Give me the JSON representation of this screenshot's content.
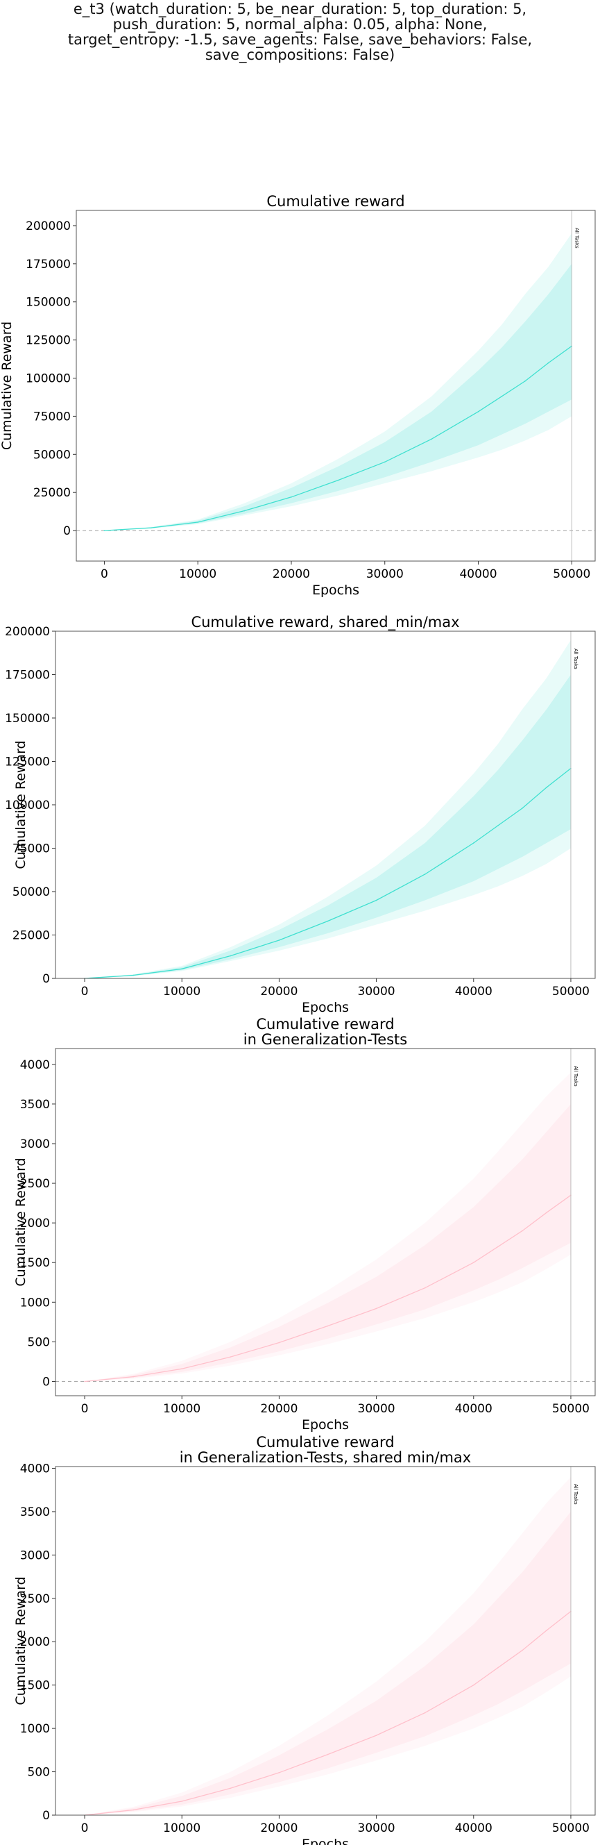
{
  "suptitle_lines": [
    "e_t3 (watch_duration: 5, be_near_duration: 5, top_duration: 5,",
    "push_duration: 5, normal_alpha: 0.05, alpha: None,",
    "target_entropy: -1.5, save_agents: False, save_behaviors: False,",
    "save_compositions: False)"
  ],
  "chart_data": [
    {
      "type": "line",
      "title": [
        "Cumulative reward"
      ],
      "xlabel": "Epochs",
      "ylabel": "Cumulative Reward",
      "xlim": [
        -3000,
        52500
      ],
      "ylim": [
        -20000,
        210000
      ],
      "xticks": [
        0,
        10000,
        20000,
        30000,
        40000,
        50000
      ],
      "yticks": [
        0,
        25000,
        50000,
        75000,
        100000,
        125000,
        150000,
        175000,
        200000
      ],
      "zero_line": true,
      "vline": {
        "x": 50000,
        "label": "All Tasks"
      },
      "colors": {
        "line": "#40e0d0",
        "band": "#40e0d0"
      },
      "series": [
        {
          "x": [
            0,
            5000,
            10000,
            15000,
            20000,
            25000,
            30000,
            35000,
            40000,
            42500,
            45000,
            47500,
            50000
          ],
          "values": [
            0,
            1800,
            5500,
            13000,
            22000,
            33000,
            45000,
            60000,
            78000,
            88000,
            98000,
            110000,
            121000
          ],
          "inner_low": [
            0,
            1500,
            4700,
            11000,
            18000,
            26000,
            35000,
            45000,
            56000,
            63000,
            70000,
            78000,
            86000
          ],
          "inner_high": [
            0,
            2100,
            6500,
            16000,
            28000,
            42000,
            58000,
            78000,
            105000,
            120000,
            137000,
            155000,
            175000
          ],
          "outer_low": [
            0,
            1300,
            4200,
            10000,
            16000,
            23000,
            31000,
            39000,
            48000,
            53000,
            59000,
            66000,
            75000
          ],
          "outer_high": [
            0,
            2400,
            7200,
            18000,
            31000,
            47000,
            65000,
            88000,
            118000,
            135000,
            155000,
            173000,
            195000
          ]
        }
      ]
    },
    {
      "type": "line",
      "title": [
        "Cumulative reward, shared_min/max"
      ],
      "xlabel": "Epochs",
      "ylabel": "Cumulative Reward",
      "xlim": [
        -3000,
        52500
      ],
      "ylim": [
        0,
        200000
      ],
      "xticks": [
        0,
        10000,
        20000,
        30000,
        40000,
        50000
      ],
      "yticks": [
        0,
        25000,
        50000,
        75000,
        100000,
        125000,
        150000,
        175000,
        200000
      ],
      "zero_line": false,
      "vline": {
        "x": 50000,
        "label": "All Tasks"
      },
      "colors": {
        "line": "#40e0d0",
        "band": "#40e0d0"
      },
      "series": [
        {
          "x": [
            0,
            5000,
            10000,
            15000,
            20000,
            25000,
            30000,
            35000,
            40000,
            42500,
            45000,
            47500,
            50000
          ],
          "values": [
            0,
            1800,
            5500,
            13000,
            22000,
            33000,
            45000,
            60000,
            78000,
            88000,
            98000,
            110000,
            121000
          ],
          "inner_low": [
            0,
            1500,
            4700,
            11000,
            18000,
            26000,
            35000,
            45000,
            56000,
            63000,
            70000,
            78000,
            86000
          ],
          "inner_high": [
            0,
            2100,
            6500,
            16000,
            28000,
            42000,
            58000,
            78000,
            105000,
            120000,
            137000,
            155000,
            175000
          ],
          "outer_low": [
            0,
            1300,
            4200,
            10000,
            16000,
            23000,
            31000,
            39000,
            48000,
            53000,
            59000,
            66000,
            75000
          ],
          "outer_high": [
            0,
            2400,
            7200,
            18000,
            31000,
            47000,
            65000,
            88000,
            118000,
            135000,
            155000,
            173000,
            195000
          ]
        }
      ]
    },
    {
      "type": "line",
      "title": [
        "Cumulative reward",
        "in Generalization-Tests"
      ],
      "xlabel": "Epochs",
      "ylabel": "Cumulative Reward",
      "xlim": [
        -3000,
        52500
      ],
      "ylim": [
        -180,
        4200
      ],
      "xticks": [
        0,
        10000,
        20000,
        30000,
        40000,
        50000
      ],
      "yticks": [
        0,
        500,
        1000,
        1500,
        2000,
        2500,
        3000,
        3500,
        4000
      ],
      "zero_line": true,
      "vline": {
        "x": 50000,
        "label": "All Tasks"
      },
      "colors": {
        "line": "#ffc0cb",
        "band": "#ffc0cb"
      },
      "series": [
        {
          "x": [
            0,
            5000,
            10000,
            15000,
            20000,
            25000,
            30000,
            35000,
            40000,
            42500,
            45000,
            47500,
            50000
          ],
          "values": [
            0,
            60,
            160,
            310,
            490,
            700,
            920,
            1180,
            1500,
            1700,
            1900,
            2130,
            2350
          ],
          "inner_low": [
            0,
            45,
            120,
            240,
            380,
            540,
            720,
            910,
            1150,
            1280,
            1430,
            1590,
            1750
          ],
          "inner_high": [
            0,
            80,
            220,
            430,
            690,
            990,
            1320,
            1720,
            2200,
            2500,
            2800,
            3150,
            3500
          ],
          "outer_low": [
            0,
            35,
            100,
            200,
            330,
            470,
            630,
            800,
            1000,
            1120,
            1250,
            1420,
            1600
          ],
          "outer_high": [
            0,
            95,
            260,
            500,
            800,
            1150,
            1540,
            2000,
            2560,
            2900,
            3250,
            3600,
            3900
          ]
        }
      ]
    },
    {
      "type": "line",
      "title": [
        "Cumulative reward",
        "in Generalization-Tests, shared min/max"
      ],
      "xlabel": "Epochs",
      "ylabel": "Cumulative Reward",
      "xlim": [
        -3000,
        52500
      ],
      "ylim": [
        0,
        4020
      ],
      "xticks": [
        0,
        10000,
        20000,
        30000,
        40000,
        50000
      ],
      "yticks": [
        0,
        500,
        1000,
        1500,
        2000,
        2500,
        3000,
        3500,
        4000
      ],
      "zero_line": false,
      "vline": {
        "x": 50000,
        "label": "All Tasks"
      },
      "colors": {
        "line": "#ffc0cb",
        "band": "#ffc0cb"
      },
      "series": [
        {
          "x": [
            0,
            5000,
            10000,
            15000,
            20000,
            25000,
            30000,
            35000,
            40000,
            42500,
            45000,
            47500,
            50000
          ],
          "values": [
            0,
            60,
            160,
            310,
            490,
            700,
            920,
            1180,
            1500,
            1700,
            1900,
            2130,
            2350
          ],
          "inner_low": [
            0,
            45,
            120,
            240,
            380,
            540,
            720,
            910,
            1150,
            1280,
            1430,
            1590,
            1750
          ],
          "inner_high": [
            0,
            80,
            220,
            430,
            690,
            990,
            1320,
            1720,
            2200,
            2500,
            2800,
            3150,
            3500
          ],
          "outer_low": [
            0,
            35,
            100,
            200,
            330,
            470,
            630,
            800,
            1000,
            1120,
            1250,
            1420,
            1600
          ],
          "outer_high": [
            0,
            95,
            260,
            500,
            800,
            1150,
            1540,
            2000,
            2560,
            2900,
            3250,
            3600,
            3900
          ]
        }
      ]
    }
  ]
}
